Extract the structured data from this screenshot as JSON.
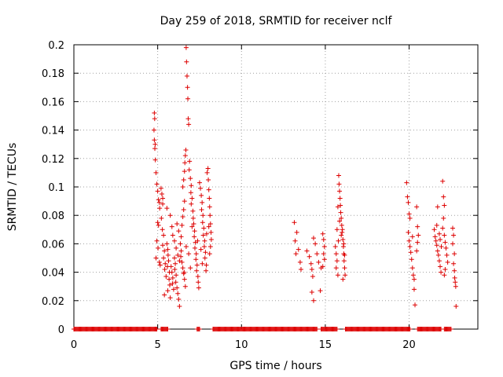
{
  "chart_data": {
    "type": "scatter",
    "title": "Day 259 of 2018, SRMTID for receiver nclf",
    "xlabel": "GPS time / hours",
    "ylabel": "SRMTID / TECUs",
    "xlim": [
      0,
      24.1
    ],
    "ylim": [
      0,
      0.2
    ],
    "xticks": [
      0,
      5,
      10,
      15,
      20
    ],
    "xtick_labels": [
      "0",
      "5",
      "10",
      "15",
      "20"
    ],
    "yticks": [
      0,
      0.02,
      0.04,
      0.06,
      0.08,
      0.1,
      0.12,
      0.14,
      0.16,
      0.18,
      0.2
    ],
    "ytick_labels": [
      "0",
      "0.02",
      "0.04",
      "0.06",
      "0.08",
      "0.1",
      "0.12",
      "0.14",
      "0.16",
      "0.18",
      "0.2"
    ],
    "grid": true,
    "marker": "+",
    "color": "#dd0000",
    "series": [
      {
        "name": "SRMTID",
        "points": [
          [
            4.8,
            0.152
          ],
          [
            4.82,
            0.148
          ],
          [
            4.78,
            0.14
          ],
          [
            4.8,
            0.133
          ],
          [
            4.85,
            0.13
          ],
          [
            4.83,
            0.127
          ],
          [
            4.86,
            0.119
          ],
          [
            4.9,
            0.11
          ],
          [
            4.95,
            0.102
          ],
          [
            5.0,
            0.097
          ],
          [
            5.05,
            0.091
          ],
          [
            5.1,
            0.089
          ],
          [
            5.12,
            0.085
          ],
          [
            5.0,
            0.075
          ],
          [
            5.05,
            0.073
          ],
          [
            4.95,
            0.062
          ],
          [
            5.02,
            0.057
          ],
          [
            4.9,
            0.05
          ],
          [
            5.1,
            0.047
          ],
          [
            5.15,
            0.045
          ],
          [
            5.2,
            0.099
          ],
          [
            5.25,
            0.095
          ],
          [
            5.3,
            0.088
          ],
          [
            5.22,
            0.078
          ],
          [
            5.28,
            0.07
          ],
          [
            5.35,
            0.066
          ],
          [
            5.3,
            0.059
          ],
          [
            5.4,
            0.055
          ],
          [
            5.35,
            0.05
          ],
          [
            5.45,
            0.046
          ],
          [
            5.42,
            0.042
          ],
          [
            5.5,
            0.037
          ],
          [
            5.4,
            0.024
          ],
          [
            5.55,
            0.06
          ],
          [
            5.6,
            0.056
          ],
          [
            5.62,
            0.052
          ],
          [
            5.65,
            0.048
          ],
          [
            5.58,
            0.044
          ],
          [
            5.7,
            0.04
          ],
          [
            5.68,
            0.035
          ],
          [
            5.72,
            0.031
          ],
          [
            5.6,
            0.027
          ],
          [
            5.75,
            0.022
          ],
          [
            5.8,
            0.044
          ],
          [
            5.85,
            0.04
          ],
          [
            5.9,
            0.036
          ],
          [
            5.88,
            0.032
          ],
          [
            5.95,
            0.028
          ],
          [
            6.0,
            0.05
          ],
          [
            6.05,
            0.046
          ],
          [
            6.02,
            0.042
          ],
          [
            6.1,
            0.038
          ],
          [
            6.08,
            0.033
          ],
          [
            6.15,
            0.029
          ],
          [
            6.2,
            0.025
          ],
          [
            6.25,
            0.021
          ],
          [
            6.3,
            0.016
          ],
          [
            6.35,
            0.06
          ],
          [
            6.4,
            0.055
          ],
          [
            6.38,
            0.051
          ],
          [
            6.45,
            0.047
          ],
          [
            6.5,
            0.043
          ],
          [
            6.55,
            0.039
          ],
          [
            6.6,
            0.035
          ],
          [
            6.65,
            0.03
          ],
          [
            5.85,
            0.072
          ],
          [
            5.9,
            0.066
          ],
          [
            6.0,
            0.062
          ],
          [
            6.1,
            0.057
          ],
          [
            6.2,
            0.052
          ],
          [
            6.3,
            0.048
          ],
          [
            6.45,
            0.073
          ],
          [
            6.5,
            0.079
          ],
          [
            6.55,
            0.084
          ],
          [
            6.6,
            0.09
          ],
          [
            6.5,
            0.1
          ],
          [
            6.55,
            0.105
          ],
          [
            6.6,
            0.111
          ],
          [
            6.62,
            0.117
          ],
          [
            6.65,
            0.122
          ],
          [
            6.68,
            0.126
          ],
          [
            6.7,
            0.198
          ],
          [
            6.72,
            0.188
          ],
          [
            6.75,
            0.178
          ],
          [
            6.78,
            0.17
          ],
          [
            6.8,
            0.162
          ],
          [
            6.82,
            0.148
          ],
          [
            6.85,
            0.144
          ],
          [
            6.9,
            0.118
          ],
          [
            6.88,
            0.112
          ],
          [
            6.95,
            0.106
          ],
          [
            7.0,
            0.101
          ],
          [
            6.98,
            0.096
          ],
          [
            7.05,
            0.092
          ],
          [
            7.0,
            0.088
          ],
          [
            7.1,
            0.083
          ],
          [
            7.12,
            0.078
          ],
          [
            7.15,
            0.074
          ],
          [
            7.2,
            0.069
          ],
          [
            7.18,
            0.065
          ],
          [
            7.25,
            0.061
          ],
          [
            7.22,
            0.057
          ],
          [
            7.3,
            0.053
          ],
          [
            7.28,
            0.049
          ],
          [
            7.35,
            0.045
          ],
          [
            7.32,
            0.041
          ],
          [
            7.4,
            0.037
          ],
          [
            7.42,
            0.033
          ],
          [
            7.45,
            0.029
          ],
          [
            7.5,
            0.103
          ],
          [
            7.55,
            0.099
          ],
          [
            7.6,
            0.094
          ],
          [
            7.65,
            0.089
          ],
          [
            7.62,
            0.084
          ],
          [
            7.7,
            0.08
          ],
          [
            7.68,
            0.075
          ],
          [
            7.75,
            0.071
          ],
          [
            7.72,
            0.066
          ],
          [
            7.8,
            0.062
          ],
          [
            7.78,
            0.058
          ],
          [
            7.85,
            0.054
          ],
          [
            7.82,
            0.05
          ],
          [
            7.9,
            0.045
          ],
          [
            7.88,
            0.041
          ],
          [
            7.95,
            0.11
          ],
          [
            8.0,
            0.113
          ],
          [
            8.02,
            0.105
          ],
          [
            8.05,
            0.098
          ],
          [
            8.08,
            0.092
          ],
          [
            8.1,
            0.086
          ],
          [
            8.12,
            0.08
          ],
          [
            8.15,
            0.074
          ],
          [
            8.18,
            0.068
          ],
          [
            8.2,
            0.063
          ],
          [
            8.15,
            0.058
          ],
          [
            8.1,
            0.053
          ],
          [
            5.3,
            0.092
          ],
          [
            5.55,
            0.085
          ],
          [
            5.75,
            0.08
          ],
          [
            6.15,
            0.074
          ],
          [
            6.25,
            0.069
          ],
          [
            6.4,
            0.065
          ],
          [
            6.7,
            0.058
          ],
          [
            6.85,
            0.053
          ],
          [
            7.05,
            0.072
          ],
          [
            7.38,
            0.062
          ],
          [
            7.58,
            0.056
          ],
          [
            7.92,
            0.067
          ],
          [
            8.05,
            0.072
          ],
          [
            7.66,
            0.046
          ],
          [
            6.95,
            0.043
          ],
          [
            6.58,
            0.04
          ],
          [
            13.15,
            0.075
          ],
          [
            13.3,
            0.068
          ],
          [
            13.2,
            0.062
          ],
          [
            13.4,
            0.056
          ],
          [
            13.25,
            0.053
          ],
          [
            13.5,
            0.047
          ],
          [
            13.55,
            0.042
          ],
          [
            13.9,
            0.055
          ],
          [
            14.05,
            0.051
          ],
          [
            14.15,
            0.046
          ],
          [
            14.2,
            0.042
          ],
          [
            14.25,
            0.037
          ],
          [
            14.2,
            0.026
          ],
          [
            14.3,
            0.02
          ],
          [
            14.3,
            0.064
          ],
          [
            14.4,
            0.06
          ],
          [
            14.5,
            0.053
          ],
          [
            14.6,
            0.047
          ],
          [
            14.75,
            0.043
          ],
          [
            14.7,
            0.027
          ],
          [
            14.85,
            0.067
          ],
          [
            14.9,
            0.063
          ],
          [
            14.95,
            0.058
          ],
          [
            14.9,
            0.053
          ],
          [
            14.95,
            0.049
          ],
          [
            14.85,
            0.044
          ],
          [
            15.6,
            0.058
          ],
          [
            15.65,
            0.053
          ],
          [
            15.7,
            0.048
          ],
          [
            15.65,
            0.043
          ],
          [
            15.75,
            0.038
          ],
          [
            15.8,
            0.108
          ],
          [
            15.82,
            0.102
          ],
          [
            15.85,
            0.097
          ],
          [
            15.88,
            0.092
          ],
          [
            15.9,
            0.087
          ],
          [
            15.92,
            0.082
          ],
          [
            15.95,
            0.078
          ],
          [
            15.98,
            0.073
          ],
          [
            16.0,
            0.068
          ],
          [
            16.05,
            0.063
          ],
          [
            16.08,
            0.058
          ],
          [
            16.1,
            0.053
          ],
          [
            16.12,
            0.048
          ],
          [
            16.15,
            0.043
          ],
          [
            16.18,
            0.038
          ],
          [
            16.05,
            0.035
          ],
          [
            15.85,
            0.076
          ],
          [
            15.95,
            0.066
          ],
          [
            16.02,
            0.07
          ],
          [
            16.1,
            0.06
          ],
          [
            16.15,
            0.052
          ],
          [
            15.75,
            0.086
          ],
          [
            15.7,
            0.07
          ],
          [
            15.78,
            0.062
          ],
          [
            19.85,
            0.103
          ],
          [
            19.9,
            0.093
          ],
          [
            19.95,
            0.089
          ],
          [
            20.0,
            0.081
          ],
          [
            20.05,
            0.078
          ],
          [
            19.95,
            0.068
          ],
          [
            20.0,
            0.062
          ],
          [
            20.05,
            0.058
          ],
          [
            20.1,
            0.054
          ],
          [
            20.15,
            0.049
          ],
          [
            20.2,
            0.043
          ],
          [
            20.25,
            0.038
          ],
          [
            20.3,
            0.035
          ],
          [
            20.3,
            0.028
          ],
          [
            20.35,
            0.017
          ],
          [
            20.2,
            0.065
          ],
          [
            20.45,
            0.086
          ],
          [
            20.5,
            0.072
          ],
          [
            20.55,
            0.066
          ],
          [
            20.5,
            0.061
          ],
          [
            20.45,
            0.055
          ],
          [
            21.5,
            0.07
          ],
          [
            21.55,
            0.065
          ],
          [
            21.6,
            0.062
          ],
          [
            21.65,
            0.059
          ],
          [
            21.7,
            0.055
          ],
          [
            21.75,
            0.052
          ],
          [
            21.8,
            0.048
          ],
          [
            21.85,
            0.044
          ],
          [
            21.9,
            0.04
          ],
          [
            21.7,
            0.086
          ],
          [
            21.65,
            0.073
          ],
          [
            21.8,
            0.067
          ],
          [
            21.85,
            0.063
          ],
          [
            21.92,
            0.058
          ],
          [
            22.0,
            0.104
          ],
          [
            22.05,
            0.093
          ],
          [
            22.1,
            0.087
          ],
          [
            22.05,
            0.078
          ],
          [
            22.0,
            0.071
          ],
          [
            22.1,
            0.066
          ],
          [
            22.15,
            0.061
          ],
          [
            22.2,
            0.057
          ],
          [
            22.25,
            0.052
          ],
          [
            22.3,
            0.047
          ],
          [
            22.15,
            0.042
          ],
          [
            22.1,
            0.038
          ],
          [
            22.6,
            0.071
          ],
          [
            22.65,
            0.066
          ],
          [
            22.6,
            0.06
          ],
          [
            22.7,
            0.053
          ],
          [
            22.65,
            0.046
          ],
          [
            22.7,
            0.041
          ],
          [
            22.72,
            0.036
          ],
          [
            22.75,
            0.033
          ],
          [
            22.78,
            0.03
          ],
          [
            22.8,
            0.016
          ]
        ]
      }
    ],
    "zero_band_segments": [
      [
        0.0,
        4.95
      ],
      [
        5.2,
        5.6
      ],
      [
        7.35,
        7.5
      ],
      [
        8.3,
        14.5
      ],
      [
        14.75,
        15.7
      ],
      [
        16.2,
        20.05
      ],
      [
        20.5,
        21.9
      ],
      [
        22.1,
        22.5
      ]
    ]
  }
}
